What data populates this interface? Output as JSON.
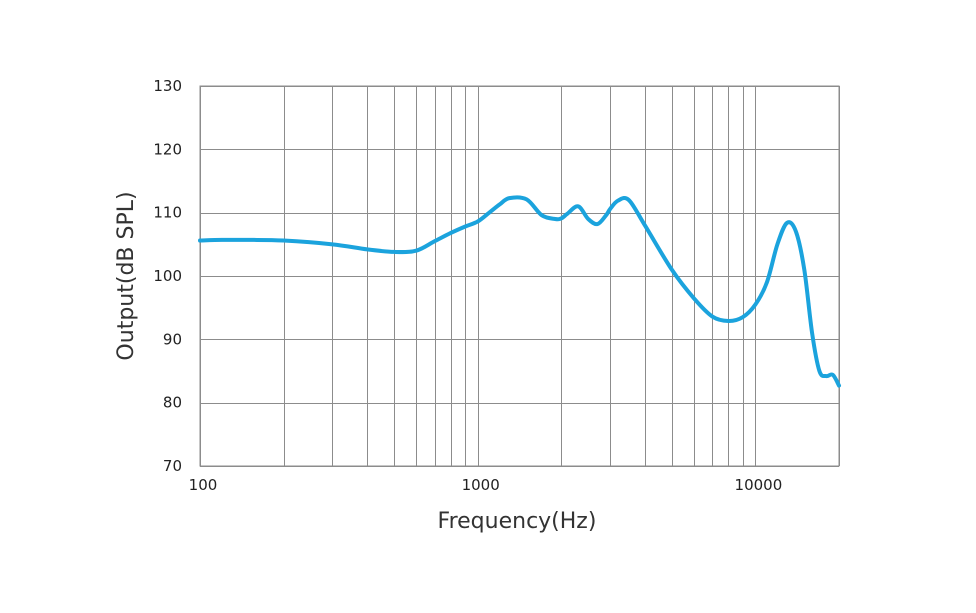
{
  "chart_data": {
    "type": "line",
    "xlabel": "Frequency(Hz)",
    "ylabel": "Output(dB SPL)",
    "xscale": "log",
    "xlim": [
      100,
      20000
    ],
    "ylim": [
      70,
      130
    ],
    "x_ticks": [
      100,
      1000,
      10000
    ],
    "x_tick_labels": [
      "100",
      "1000",
      "10000"
    ],
    "y_ticks": [
      70,
      80,
      90,
      100,
      110,
      120,
      130
    ],
    "y_tick_labels": [
      "70",
      "80",
      "90",
      "100",
      "110",
      "120",
      "130"
    ],
    "grid": true,
    "colors": {
      "line": "#1ba3dd",
      "grid": "#8c8c8c",
      "text": "#222222"
    },
    "series": [
      {
        "x": [
          100,
          120,
          150,
          200,
          300,
          400,
          500,
          600,
          700,
          800,
          900,
          1000,
          1100,
          1200,
          1300,
          1500,
          1700,
          1900,
          2000,
          2100,
          2300,
          2500,
          2700,
          2900,
          3000,
          3200,
          3500,
          4000,
          5000,
          6000,
          7000,
          8000,
          9000,
          10000,
          11000,
          12000,
          13000,
          14000,
          15000,
          16000,
          17000,
          18000,
          19000,
          20000
        ],
        "y": [
          105.6,
          105.7,
          105.7,
          105.6,
          105.0,
          104.2,
          103.8,
          104.0,
          105.5,
          106.8,
          107.8,
          108.6,
          110.0,
          111.3,
          112.3,
          112.1,
          109.6,
          109.0,
          109.1,
          109.8,
          111.0,
          109.0,
          108.2,
          109.6,
          110.6,
          111.9,
          112.0,
          108.0,
          101.0,
          96.5,
          93.6,
          92.9,
          93.5,
          95.5,
          99.0,
          105.0,
          108.4,
          107.0,
          101.0,
          91.0,
          85.0,
          84.2,
          84.4,
          82.7
        ]
      }
    ]
  }
}
